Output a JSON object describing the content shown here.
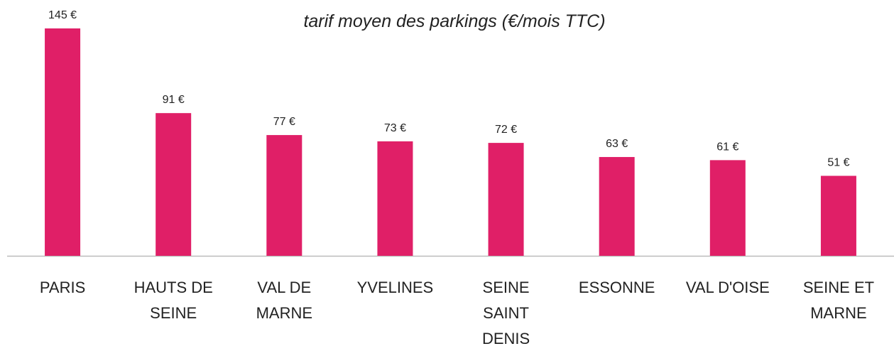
{
  "chart_data": {
    "type": "bar",
    "title": "tarif moyen des parkings (€/mois TTC)",
    "categories": [
      "PARIS",
      "HAUTS DE SEINE",
      "VAL DE MARNE",
      "YVELINES",
      "SEINE SAINT DENIS",
      "ESSONNE",
      "VAL D'OISE",
      "SEINE ET MARNE"
    ],
    "values": [
      145,
      91,
      77,
      73,
      72,
      63,
      61,
      51
    ],
    "value_labels": [
      "145 €",
      "91 €",
      "77 €",
      "73 €",
      "72 €",
      "63 €",
      "61 €",
      "51 €"
    ],
    "color": "#e01f67",
    "ylim": [
      0,
      145
    ]
  }
}
